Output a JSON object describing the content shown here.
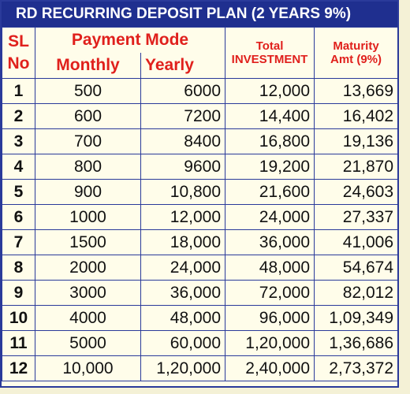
{
  "title": "RD RECURRING DEPOSIT PLAN (2 YEARS 9%)",
  "header": {
    "sl_no": [
      "SL",
      "No"
    ],
    "payment_mode": "Payment Mode",
    "monthly": "Monthly",
    "yearly": "Yearly",
    "total": [
      "Total",
      "INVESTMENT"
    ],
    "maturity": [
      "Maturity",
      "Amt (9%)"
    ]
  },
  "table": {
    "rows": [
      [
        "1",
        "500",
        "6000",
        "12,000",
        "13,669"
      ],
      [
        "2",
        "600",
        "7200",
        "14,400",
        "16,402"
      ],
      [
        "3",
        "700",
        "8400",
        "16,800",
        "19,136"
      ],
      [
        "4",
        "800",
        "9600",
        "19,200",
        "21,870"
      ],
      [
        "5",
        "900",
        "10,800",
        "21,600",
        "24,603"
      ],
      [
        "6",
        "1000",
        "12,000",
        "24,000",
        "27,337"
      ],
      [
        "7",
        "1500",
        "18,000",
        "36,000",
        "41,006"
      ],
      [
        "8",
        "2000",
        "24,000",
        "48,000",
        "54,674"
      ],
      [
        "9",
        "3000",
        "36,000",
        "72,000",
        "82,012"
      ],
      [
        "10",
        "4000",
        "48,000",
        "96,000",
        "1,09,349"
      ],
      [
        "11",
        "5000",
        "60,000",
        "1,20,000",
        "1,36,686"
      ],
      [
        "12",
        "10,000",
        "1,20,000",
        "2,40,000",
        "2,73,372"
      ]
    ]
  }
}
